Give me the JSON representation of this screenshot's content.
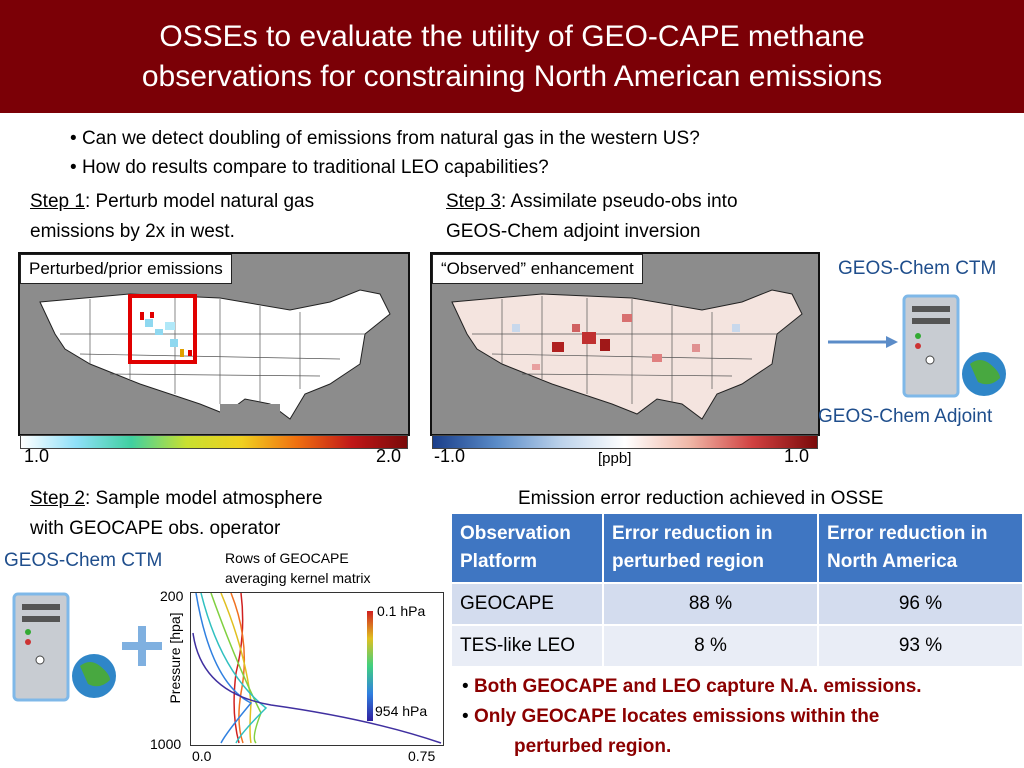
{
  "slide": {
    "title_line1": "OSSEs to evaluate the utility of GEO-CAPE methane",
    "title_line2": "observations for constraining North American emissions",
    "bullets": [
      "Can we detect doubling of emissions from natural gas in the western US?",
      "How do results compare to traditional LEO capabilities?"
    ]
  },
  "step1": {
    "label": "Step 1",
    "text_line1": ": Perturb model natural gas",
    "text_line2": "emissions by 2x in west.",
    "map_label": "Perturbed/prior emissions",
    "cbar_min": "1.0",
    "cbar_max": "2.0"
  },
  "step3": {
    "label": "Step 3",
    "text_line1": ": Assimilate pseudo-obs into",
    "text_line2": "GEOS-Chem adjoint inversion",
    "map_label": "“Observed” enhancement",
    "cbar_min": "-1.0",
    "cbar_unit": "[ppb]",
    "cbar_max": "1.0"
  },
  "right_model": {
    "ctm_label": "GEOS-Chem CTM",
    "adjoint_label": "GEOS-Chem Adjoint"
  },
  "step2": {
    "label": "Step 2",
    "text_line1": ": Sample model atmosphere",
    "text_line2": "with GEOCAPE obs. operator",
    "ctm_label": "GEOS-Chem CTM",
    "plot_title_line1": "Rows of GEOCAPE",
    "plot_title_line2": "averaging kernel matrix",
    "y_axis_label": "Pressure [hpa]",
    "y_top": "200",
    "y_bottom": "1000",
    "x_min": "0.0",
    "x_max": "0.75",
    "legend_top": "0.1 hPa",
    "legend_bottom": "954 hPa"
  },
  "results": {
    "caption": "Emission error reduction achieved in OSSE",
    "headers": [
      [
        "Observation",
        "Platform"
      ],
      [
        "Error reduction in",
        "perturbed region"
      ],
      [
        "Error reduction in",
        "North America"
      ]
    ],
    "rows": [
      [
        "GEOCAPE",
        "88 %",
        "96 %"
      ],
      [
        "TES-like LEO",
        "8 %",
        "93 %"
      ]
    ]
  },
  "conclusions": {
    "line1": "Both GEOCAPE and LEO capture N.A. emissions.",
    "line2": "Only GEOCAPE locates emissions within the",
    "line3": "perturbed region."
  },
  "colors": {
    "title_bg": "#7b0006",
    "table_header": "#3f76c2",
    "accent_blue": "#1f4e8c",
    "conclusion_red": "#8b0000"
  }
}
